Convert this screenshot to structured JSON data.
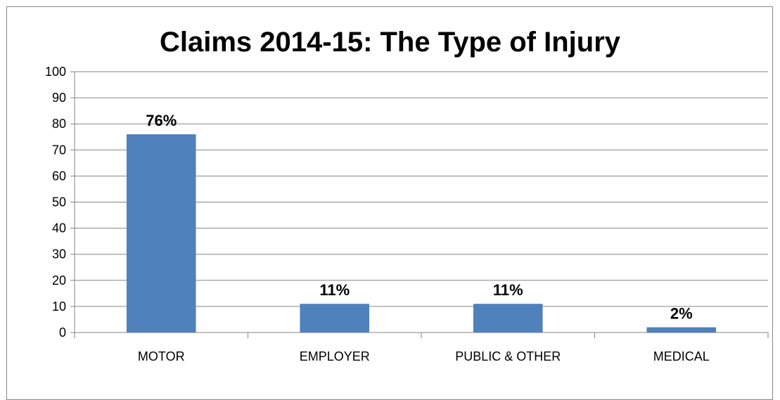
{
  "chart_data": {
    "type": "bar",
    "title": "Claims 2014-15: The Type of Injury",
    "categories": [
      "MOTOR",
      "EMPLOYER",
      "PUBLIC & OTHER",
      "MEDICAL"
    ],
    "values": [
      76,
      11,
      11,
      2
    ],
    "data_labels": [
      "76%",
      "11%",
      "11%",
      "2%"
    ],
    "ylim": [
      0,
      100
    ],
    "yticks": [
      0,
      10,
      20,
      30,
      40,
      50,
      60,
      70,
      80,
      90,
      100
    ],
    "grid": true,
    "legend": "none",
    "xlabel": "",
    "ylabel": "",
    "bar_color": "#4F81BD",
    "grid_color": "#868686"
  }
}
